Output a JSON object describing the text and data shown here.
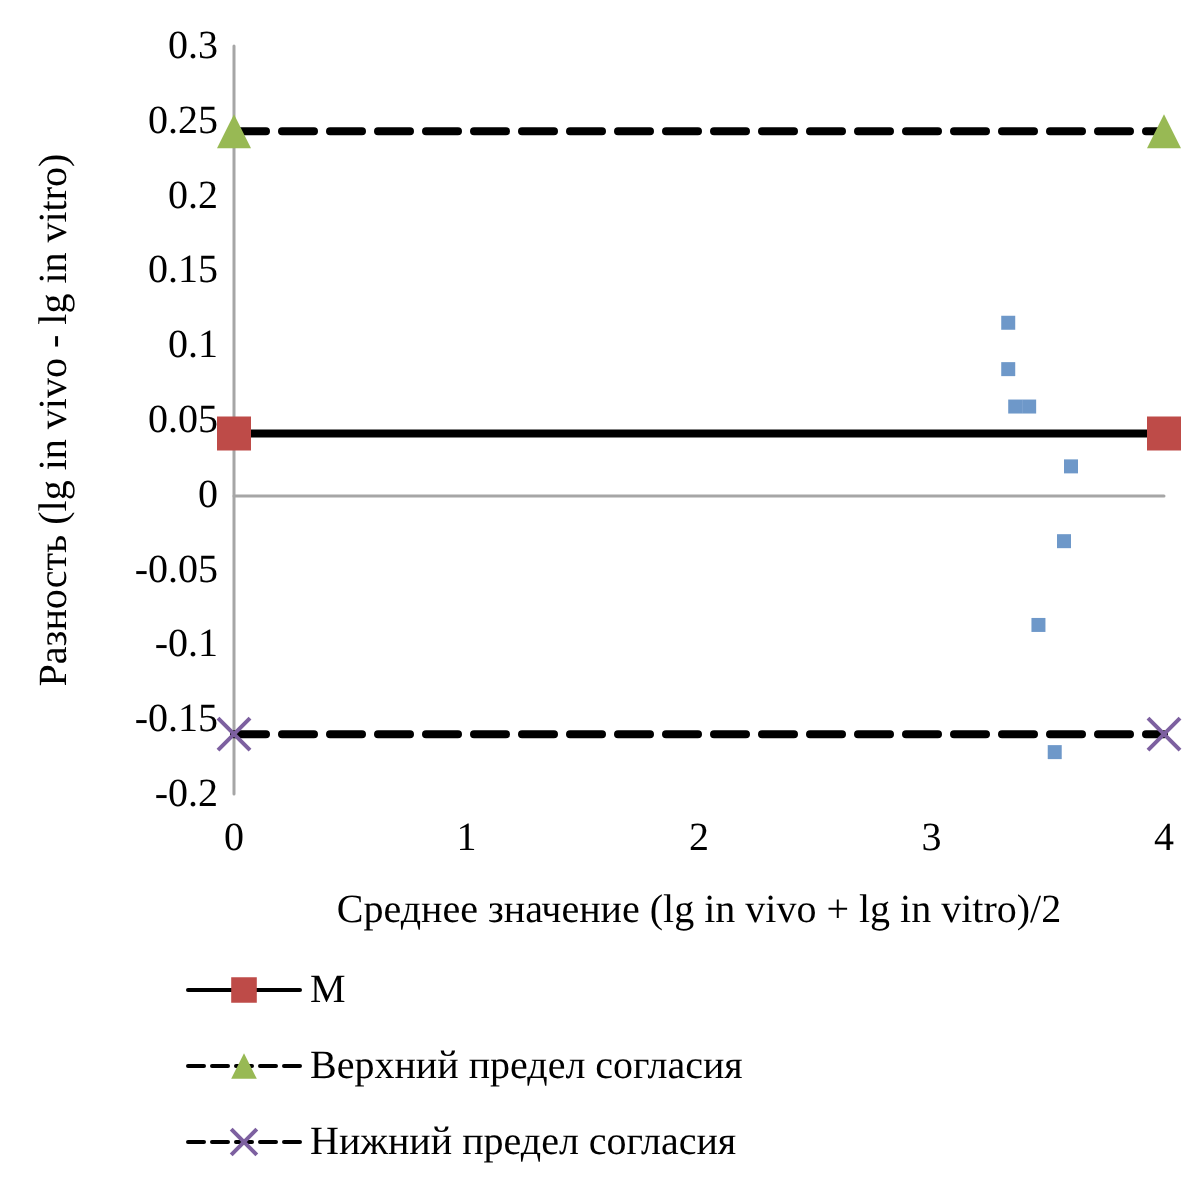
{
  "chart_data": {
    "type": "scatter",
    "xlabel": "Среднее значение (lg in vivo + lg in vitro)/2",
    "ylabel": "Разность (lg in vivo - lg in vitro)",
    "xlim": [
      0,
      4
    ],
    "xticks": [
      0,
      1,
      2,
      3,
      4
    ],
    "ylim": [
      -0.2,
      0.3
    ],
    "yticks": [
      -0.2,
      -0.15,
      -0.1,
      -0.05,
      0,
      0.05,
      0.1,
      0.15,
      0.2,
      0.25,
      0.3
    ],
    "legend": "bottom",
    "series": [
      {
        "color": "#4a7ebb",
        "marker": "square",
        "x": [
          3.33,
          3.33,
          3.36,
          3.42,
          3.6,
          3.57,
          3.46,
          3.53
        ],
        "values": [
          0.115,
          0.084,
          0.059,
          0.059,
          0.019,
          -0.031,
          -0.087,
          -0.172
        ]
      },
      {
        "type": "line",
        "name": "M",
        "color": "#000000",
        "marker": "square",
        "colors": [
          "#be4b48",
          "#be4b48"
        ],
        "line_style": "solid",
        "x": [
          0,
          4
        ],
        "values": [
          0.041,
          0.041
        ]
      },
      {
        "type": "line",
        "name": "Верхний предел согласия",
        "color": "#000000",
        "marker": "triangle",
        "colors": [
          "#98b954",
          "#98b954"
        ],
        "line_style": "dashed",
        "x": [
          0,
          4
        ],
        "values": [
          0.243,
          0.243
        ]
      },
      {
        "type": "line",
        "name": "Нижний предел согласия",
        "color": "#000000",
        "marker": "cross",
        "colors": [
          "#7d60a0",
          "#7d60a0"
        ],
        "line_style": "dashed",
        "x": [
          0,
          4
        ],
        "values": [
          -0.16,
          -0.16
        ]
      }
    ]
  }
}
